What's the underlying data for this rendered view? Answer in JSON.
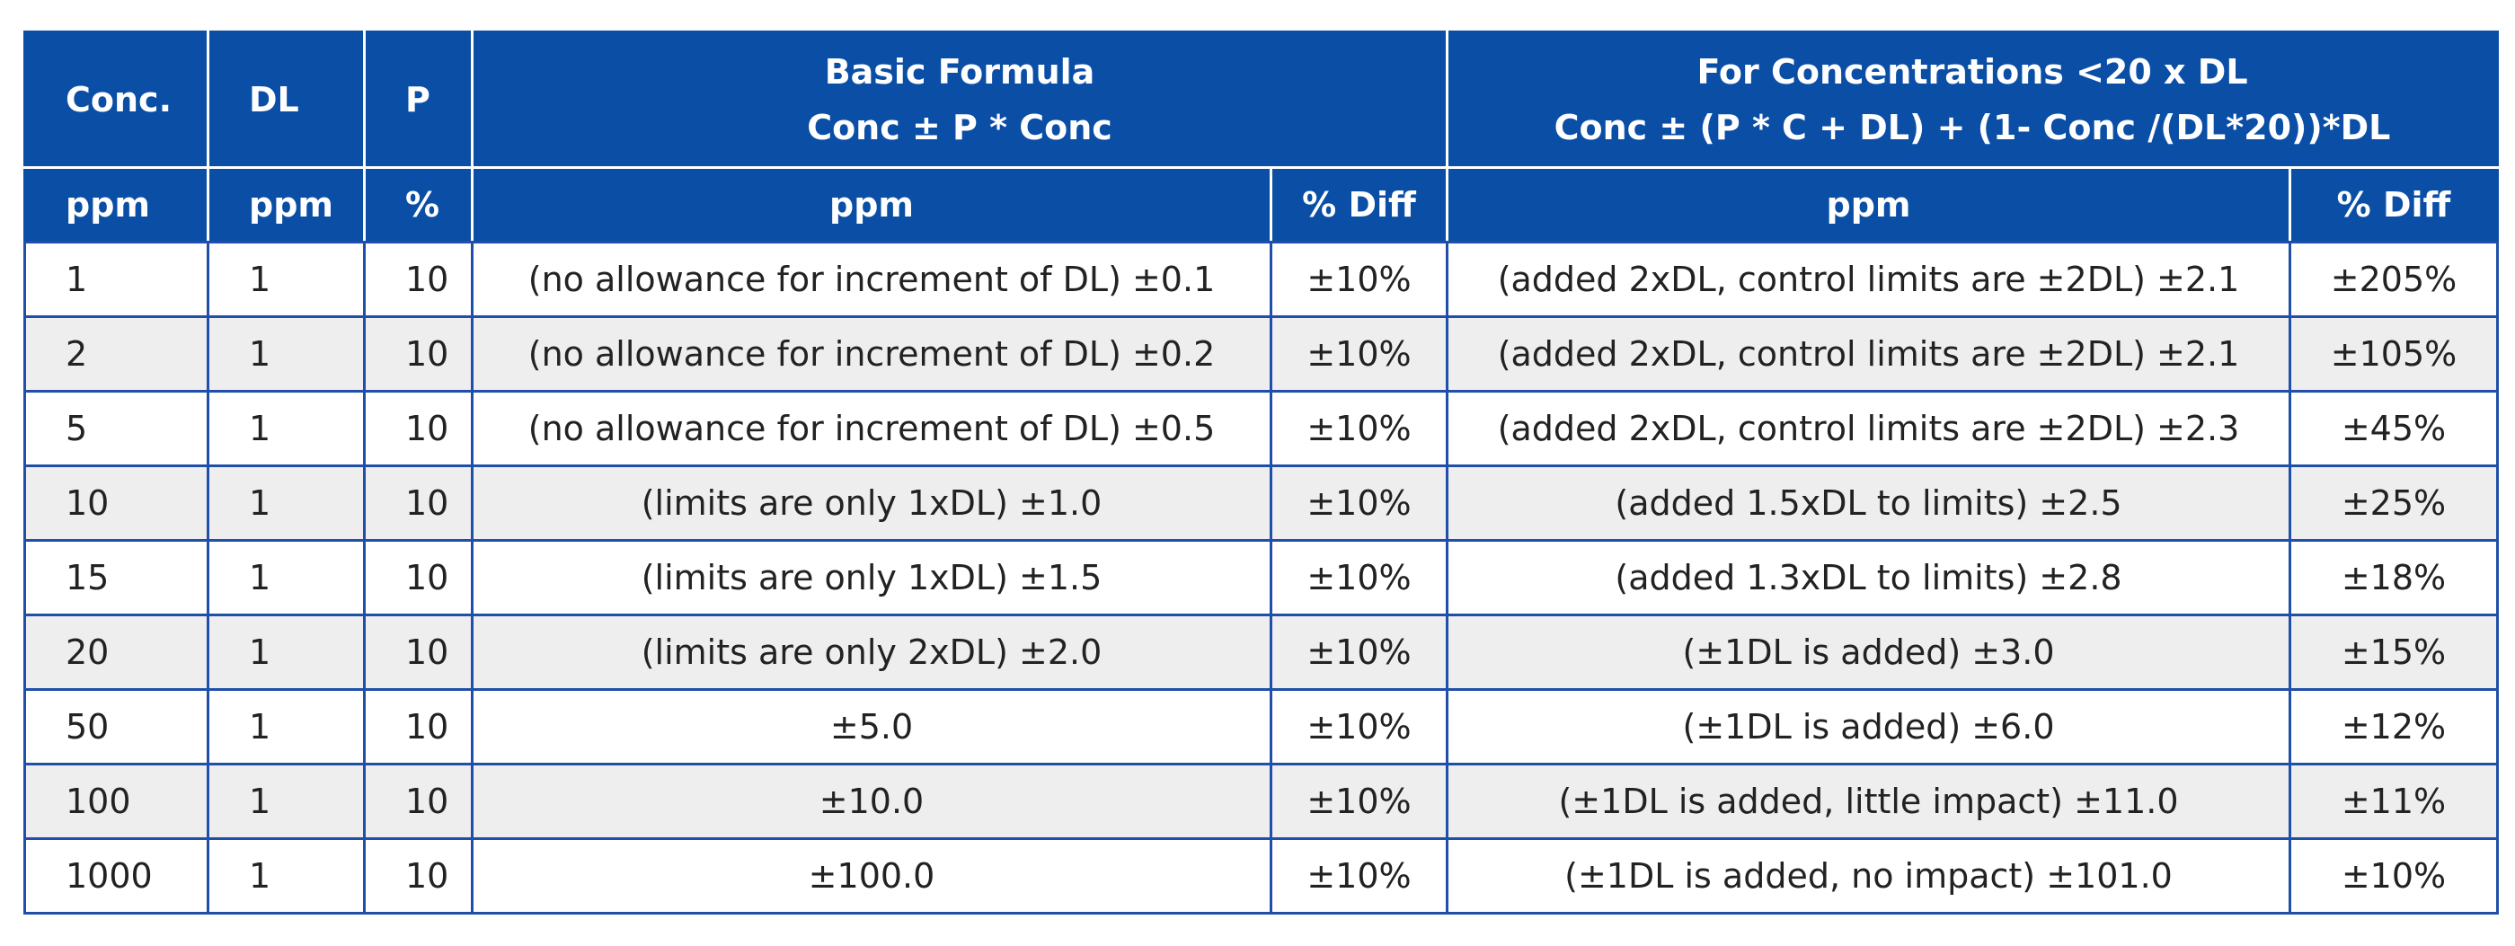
{
  "header": {
    "row1": {
      "conc": "Conc.",
      "dl": "DL",
      "p": "P",
      "basic_line1": "Basic Formula",
      "basic_line2": "Conc ± P * Conc",
      "low_line1": "For Concentrations <20 x DL",
      "low_line2": "Conc ± (P * C + DL) + (1- Conc /(DL*20))*DL"
    },
    "row2": {
      "conc_unit": "ppm",
      "dl_unit": "ppm",
      "p_unit": "%",
      "basic_ppm": "ppm",
      "basic_diff": "% Diff",
      "low_ppm": "ppm",
      "low_diff": "% Diff"
    }
  },
  "rows": [
    {
      "conc": "1",
      "dl": "1",
      "p": "10",
      "basic": "(no allowance for increment of DL) ±0.1",
      "basic_diff": "±10%",
      "low": "(added 2xDL, control limits are ±2DL) ±2.1",
      "low_diff": "±205%"
    },
    {
      "conc": "2",
      "dl": "1",
      "p": "10",
      "basic": "(no allowance for increment of DL) ±0.2",
      "basic_diff": "±10%",
      "low": "(added 2xDL, control limits are ±2DL) ±2.1",
      "low_diff": "±105%"
    },
    {
      "conc": "5",
      "dl": "1",
      "p": "10",
      "basic": "(no allowance for increment of DL) ±0.5",
      "basic_diff": "±10%",
      "low": "(added 2xDL, control limits are ±2DL) ±2.3",
      "low_diff": "±45%"
    },
    {
      "conc": "10",
      "dl": "1",
      "p": "10",
      "basic": "(limits are only 1xDL) ±1.0",
      "basic_diff": "±10%",
      "low": "(added 1.5xDL to limits) ±2.5",
      "low_diff": "±25%"
    },
    {
      "conc": "15",
      "dl": "1",
      "p": "10",
      "basic": "(limits are only 1xDL) ±1.5",
      "basic_diff": "±10%",
      "low": "(added 1.3xDL to limits) ±2.8",
      "low_diff": "±18%"
    },
    {
      "conc": "20",
      "dl": "1",
      "p": "10",
      "basic": "(limits are only 2xDL) ±2.0",
      "basic_diff": "±10%",
      "low": "(±1DL is added) ±3.0",
      "low_diff": "±15%"
    },
    {
      "conc": "50",
      "dl": "1",
      "p": "10",
      "basic": "±5.0",
      "basic_diff": "±10%",
      "low": "(±1DL is added) ±6.0",
      "low_diff": "±12%"
    },
    {
      "conc": "100",
      "dl": "1",
      "p": "10",
      "basic": "±10.0",
      "basic_diff": "±10%",
      "low": "(±1DL is added, little impact) ±11.0",
      "low_diff": "±11%"
    },
    {
      "conc": "1000",
      "dl": "1",
      "p": "10",
      "basic": "±100.0",
      "basic_diff": "±10%",
      "low": "(±1DL is added, no impact) ±101.0",
      "low_diff": "±10%"
    }
  ],
  "colors": {
    "header_bg": "#0a4ea6",
    "border": "#1f4fa8",
    "row_alt": "#eeeeee"
  }
}
